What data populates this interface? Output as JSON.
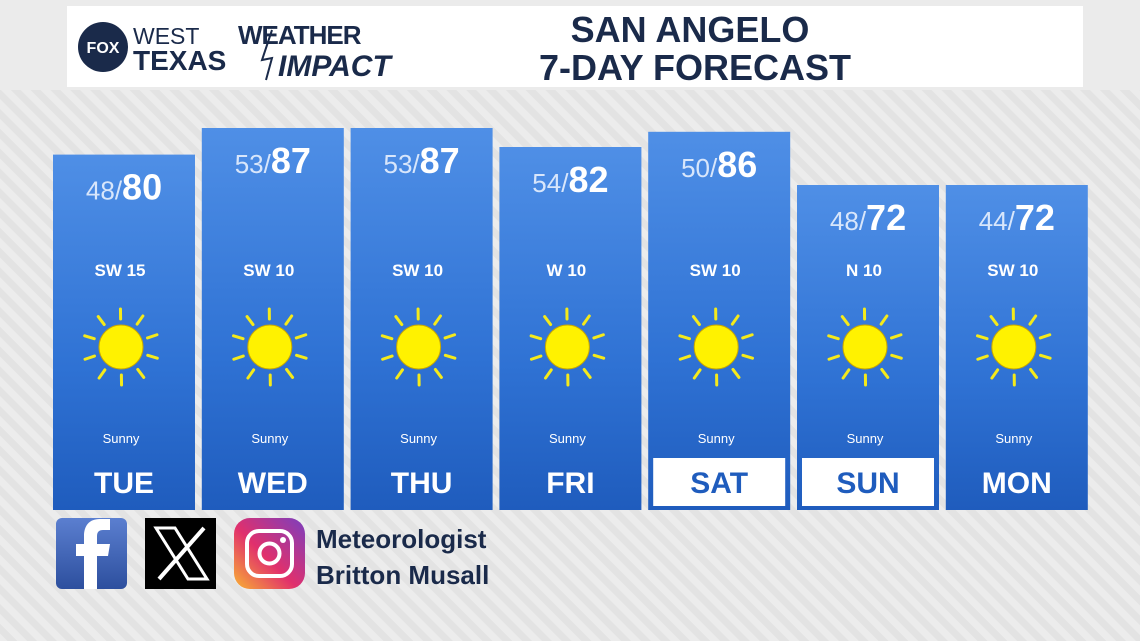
{
  "header": {
    "logo": {
      "network": "FOX",
      "line1": "WEST",
      "line2": "TEXAS",
      "brand1": "WEATHER",
      "brand2": "IMPACT"
    },
    "title_line1": "SAN ANGELO",
    "title_line2": "7-DAY FORECAST"
  },
  "separator": "/",
  "days": [
    {
      "day": "TUE",
      "low": 48,
      "high": 80,
      "wind": "SW 15",
      "condition": "Sunny",
      "highlight": false
    },
    {
      "day": "WED",
      "low": 53,
      "high": 87,
      "wind": "SW 10",
      "condition": "Sunny",
      "highlight": false
    },
    {
      "day": "THU",
      "low": 53,
      "high": 87,
      "wind": "SW 10",
      "condition": "Sunny",
      "highlight": false
    },
    {
      "day": "FRI",
      "low": 54,
      "high": 82,
      "wind": "W 10",
      "condition": "Sunny",
      "highlight": false
    },
    {
      "day": "SAT",
      "low": 50,
      "high": 86,
      "wind": "SW 10",
      "condition": "Sunny",
      "highlight": true
    },
    {
      "day": "SUN",
      "low": 48,
      "high": 72,
      "wind": "N 10",
      "condition": "Sunny",
      "highlight": true
    },
    {
      "day": "MON",
      "low": 44,
      "high": 72,
      "wind": "SW 10",
      "condition": "Sunny",
      "highlight": false
    }
  ],
  "footer": {
    "line1": "Meteorologist",
    "line2": "Britton Musall"
  }
}
